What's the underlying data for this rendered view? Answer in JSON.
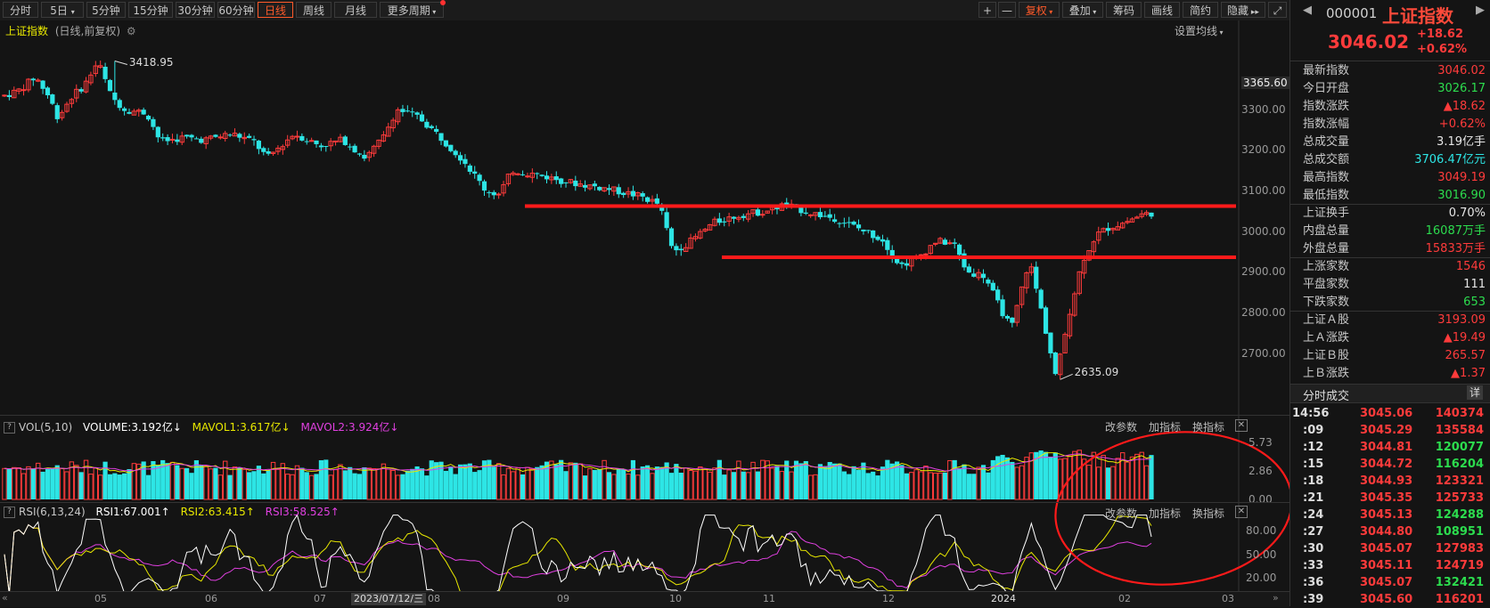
{
  "toolbar": {
    "periods": [
      "分时",
      "5日",
      "5分钟",
      "15分钟",
      "30分钟",
      "60分钟",
      "日线",
      "周线",
      "月线",
      "更多周期"
    ],
    "active_period": "日线",
    "zoom_in": "+",
    "zoom_out": "—",
    "right_buttons": [
      "复权",
      "叠加",
      "筹码",
      "画线",
      "简约",
      "隐藏"
    ]
  },
  "main_panel": {
    "title": "上证指数",
    "subtitle": "(日线,前复权)",
    "settings_label": "设置均线",
    "y_ticks": [
      "3365.60",
      "3300.00",
      "3200.00",
      "3100.00",
      "3000.00",
      "2900.00",
      "2800.00",
      "2700.00"
    ],
    "high_label": "3418.95",
    "low_label": "2635.09"
  },
  "vol_panel": {
    "name": "VOL(5,10)",
    "volume": "VOLUME:3.192亿",
    "mavol1": "MAVOL1:3.617亿",
    "mavol2": "MAVOL2:3.924亿",
    "y_ticks": [
      "5.73",
      "2.86",
      "0.00"
    ],
    "btn_params": "改参数",
    "btn_add": "加指标",
    "btn_switch": "换指标"
  },
  "rsi_panel": {
    "name": "RSI(6,13,24)",
    "rsi1": "RSI1:67.001",
    "rsi2": "RSI2:63.415",
    "rsi3": "RSI3:58.525",
    "y_ticks": [
      "80.00",
      "50.00",
      "20.00"
    ],
    "btn_params": "改参数",
    "btn_add": "加指标",
    "btn_switch": "换指标"
  },
  "x_axis": {
    "labels": [
      "05",
      "06",
      "07",
      "08",
      "09",
      "10",
      "11",
      "12",
      "2024",
      "02",
      "03"
    ],
    "cursor_label": "2023/07/12/三"
  },
  "colors": {
    "up": "#ff3b3b",
    "down": "#2de5e5",
    "mavol1": "#e8e800",
    "mavol2": "#e040e0",
    "rsi1": "#ffffff",
    "rsi2": "#e8e800",
    "rsi3": "#e040e0",
    "annotation": "#ff1a1a",
    "active_tab": "#ff5a2a"
  },
  "chart_data": {
    "type": "candlestick",
    "price_range": [
      2620,
      3430
    ],
    "support_resistance": [
      3062,
      2936
    ],
    "high": 3418.95,
    "low": 2635.09,
    "volume_range": [
      0,
      5.73
    ],
    "rsi_range": [
      10,
      95
    ]
  },
  "quote": {
    "code": "000001",
    "name": "上证指数",
    "price": "3046.02",
    "change": "+18.62",
    "change_pct": "+0.62%",
    "stats": [
      {
        "label": "最新指数",
        "value": "3046.02",
        "color": "red"
      },
      {
        "label": "今日开盘",
        "value": "3026.17",
        "color": "green"
      },
      {
        "label": "指数涨跌",
        "value": "▲18.62",
        "color": "red"
      },
      {
        "label": "指数涨幅",
        "value": "+0.62%",
        "color": "red"
      },
      {
        "label": "总成交量",
        "value": "3.19亿手",
        "color": "white"
      },
      {
        "label": "总成交额",
        "value": "3706.47亿元",
        "color": "cyan"
      },
      {
        "label": "最高指数",
        "value": "3049.19",
        "color": "red"
      },
      {
        "label": "最低指数",
        "value": "3016.90",
        "color": "green"
      },
      {
        "label": "上证换手",
        "value": "0.70%",
        "color": "white"
      },
      {
        "label": "内盘总量",
        "value": "16087万手",
        "color": "green"
      },
      {
        "label": "外盘总量",
        "value": "15833万手",
        "color": "red"
      },
      {
        "label": "上涨家数",
        "value": "1546",
        "color": "red"
      },
      {
        "label": "平盘家数",
        "value": "111",
        "color": "white"
      },
      {
        "label": "下跌家数",
        "value": "653",
        "color": "green"
      },
      {
        "label": "上证Ａ股",
        "value": "3193.09",
        "color": "red"
      },
      {
        "label": "上Ａ涨跌",
        "value": "▲19.49",
        "color": "red"
      },
      {
        "label": "上证Ｂ股",
        "value": "265.57",
        "color": "red"
      },
      {
        "label": "上Ｂ涨跌",
        "value": "▲1.37",
        "color": "red"
      }
    ],
    "ticks_title": "分时成交",
    "ticks_btn": "详",
    "ticks": [
      {
        "time": "14:56",
        "price": "3045.06",
        "vol": "140374",
        "c": "red"
      },
      {
        "time": ":09",
        "price": "3045.29",
        "vol": "135584",
        "c": "red"
      },
      {
        "time": ":12",
        "price": "3044.81",
        "vol": "120077",
        "c": "green"
      },
      {
        "time": ":15",
        "price": "3044.72",
        "vol": "116204",
        "c": "green"
      },
      {
        "time": ":18",
        "price": "3044.93",
        "vol": "123321",
        "c": "red"
      },
      {
        "time": ":21",
        "price": "3045.35",
        "vol": "125733",
        "c": "red"
      },
      {
        "time": ":24",
        "price": "3045.13",
        "vol": "124288",
        "c": "green"
      },
      {
        "time": ":27",
        "price": "3044.80",
        "vol": "108951",
        "c": "green"
      },
      {
        "time": ":30",
        "price": "3045.07",
        "vol": "127983",
        "c": "red"
      },
      {
        "time": ":33",
        "price": "3045.11",
        "vol": "124719",
        "c": "red"
      },
      {
        "time": ":36",
        "price": "3045.07",
        "vol": "132421",
        "c": "green"
      },
      {
        "time": ":39",
        "price": "3045.60",
        "vol": "116201",
        "c": "red"
      }
    ]
  }
}
